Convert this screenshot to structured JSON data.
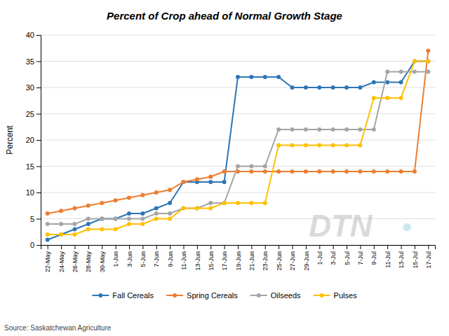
{
  "chart_data": {
    "type": "line",
    "title": "Percent of Crop ahead of Normal Growth Stage",
    "ylabel": "Percent",
    "annotations": [
      "Source: Saskatchewan Agriculture",
      "DTN",
      "●"
    ],
    "categories": [
      "22-May",
      "24-May",
      "26-May",
      "28-May",
      "30-May",
      "1-Jun",
      "3-Jun",
      "5-Jun",
      "7-Jun",
      "9-Jun",
      "11-Jun",
      "13-Jun",
      "15-Jun",
      "17-Jun",
      "19-Jun",
      "21-Jun",
      "23-Jun",
      "25-Jun",
      "27-Jun",
      "29-Jun",
      "1-Jul",
      "3-Jul",
      "5-Jul",
      "7-Jul",
      "9-Jul",
      "11-Jul",
      "13-Jul",
      "15-Jul",
      "17-Jul"
    ],
    "series": [
      {
        "name": "Fall Cereals",
        "color": "#2E75B6",
        "marker": "circle",
        "values": [
          1,
          2,
          3,
          4,
          5,
          5,
          6,
          6,
          7,
          8,
          12,
          12,
          12,
          12,
          32,
          32,
          32,
          32,
          30,
          30,
          30,
          30,
          30,
          30,
          31,
          31,
          31,
          35,
          35
        ]
      },
      {
        "name": "Spring Cereals",
        "color": "#ED7D31",
        "marker": "circle",
        "values": [
          6,
          6.5,
          7,
          7.5,
          8,
          8.5,
          9,
          9.5,
          10,
          10.5,
          12,
          12.5,
          13,
          14,
          14,
          14,
          14,
          14,
          14,
          14,
          14,
          14,
          14,
          14,
          14,
          14,
          14,
          14,
          37
        ]
      },
      {
        "name": "Oilseeds",
        "color": "#A5A5A5",
        "marker": "circle",
        "values": [
          4,
          4,
          4,
          5,
          5,
          5,
          5,
          5,
          6,
          6,
          7,
          7,
          8,
          8,
          15,
          15,
          15,
          22,
          22,
          22,
          22,
          22,
          22,
          22,
          22,
          33,
          33,
          33,
          33
        ]
      },
      {
        "name": "Pulses",
        "color": "#FFC000",
        "marker": "circle",
        "values": [
          2,
          2,
          2,
          3,
          3,
          3,
          4,
          4,
          5,
          5,
          7,
          7,
          7,
          8,
          8,
          8,
          8,
          19,
          19,
          19,
          19,
          19,
          19,
          19,
          28,
          28,
          28,
          35,
          35
        ]
      }
    ],
    "ylim": [
      0,
      40
    ],
    "yticks": [
      0,
      5,
      10,
      15,
      20,
      25,
      30,
      35,
      40
    ],
    "grid": true,
    "legend": "bottom"
  }
}
